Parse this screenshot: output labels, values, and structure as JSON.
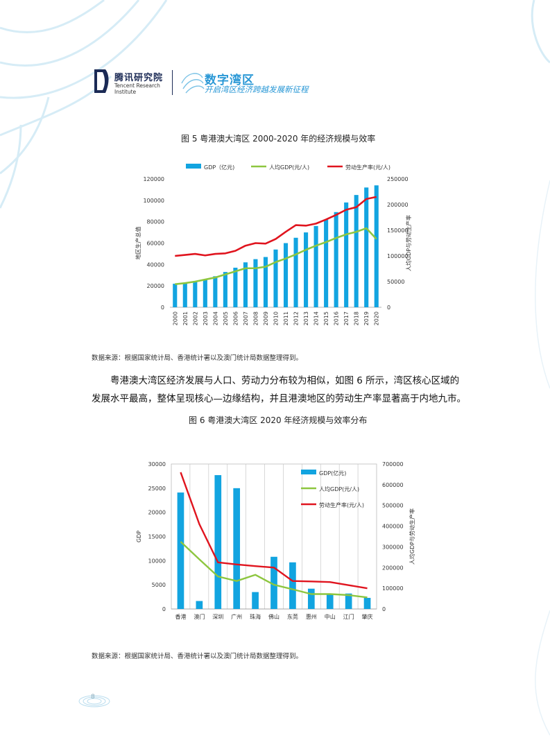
{
  "header": {
    "brand_cn": "腾讯研究院",
    "brand_en": "Tencent Research Institute",
    "topic_title": "数字湾区",
    "topic_subtitle": "开启湾区经济跨越发展新征程"
  },
  "figure5": {
    "title": "图 5  粤港澳大湾区 2000-2020 年的经济规模与效率"
  },
  "source1": "数据来源：根据国家统计局、香港统计署以及澳门统计局数据整理得到。",
  "paragraph": "粤港澳大湾区经济发展与人口、劳动力分布较为相似，如图 6 所示，湾区核心区域的发展水平最高，整体呈现核心—边缘结构，并且港澳地区的劳动生产率显著高于内地九市。",
  "figure6": {
    "title": "图 6  粤港澳大湾区 2020 年经济规模与效率分布"
  },
  "source2": "数据来源：根据国家统计局、香港统计署以及澳门统计局数据整理得到。",
  "page_number": "8",
  "colors": {
    "bar": "#12a4e0",
    "green": "#8dc63f",
    "red": "#e0141e",
    "brand": "#2a98d6"
  },
  "chart_data": [
    {
      "type": "bar",
      "categories": [
        "2000",
        "2001",
        "2002",
        "2003",
        "2004",
        "2005",
        "2006",
        "2007",
        "2008",
        "2009",
        "2010",
        "2011",
        "2012",
        "2013",
        "2014",
        "2015",
        "2016",
        "2017",
        "2018",
        "2019",
        "2020"
      ],
      "series": [
        {
          "name": "GDP（亿元)",
          "type": "bar",
          "axis": "left",
          "values": [
            22000,
            23000,
            24500,
            26000,
            29000,
            33000,
            37000,
            42000,
            45000,
            47000,
            54000,
            60000,
            65000,
            70000,
            76000,
            82000,
            89000,
            98000,
            105000,
            112000,
            114000
          ]
        },
        {
          "name": "人均GDP(元/人)",
          "type": "line",
          "axis": "right",
          "values": [
            45000,
            47000,
            50000,
            54000,
            58000,
            64000,
            70000,
            76000,
            76000,
            79000,
            88000,
            95000,
            103000,
            112000,
            120000,
            127000,
            135000,
            142000,
            147000,
            154000,
            133000
          ]
        },
        {
          "name": "劳动生产率(元/人)",
          "type": "line",
          "axis": "right",
          "values": [
            100000,
            102000,
            104000,
            101000,
            104000,
            105000,
            110000,
            120000,
            125000,
            124000,
            133000,
            147000,
            160000,
            159000,
            163000,
            171000,
            180000,
            190000,
            195000,
            211000,
            215000
          ]
        }
      ],
      "ylabel": "地区生产总值",
      "y2label": "人均GDP与劳动生产率",
      "ylim": [
        0,
        120000
      ],
      "yticks": [
        0,
        20000,
        40000,
        60000,
        80000,
        100000,
        120000
      ],
      "y2lim": [
        0,
        250000
      ],
      "y2ticks": [
        0,
        50000,
        100000,
        150000,
        200000,
        250000
      ],
      "legend": "top",
      "grid": false
    },
    {
      "type": "bar",
      "categories": [
        "香港",
        "澳门",
        "深圳",
        "广州",
        "珠海",
        "佛山",
        "东莞",
        "惠州",
        "中山",
        "江门",
        "肇庆"
      ],
      "series": [
        {
          "name": "GDP(亿元)",
          "type": "bar",
          "axis": "left",
          "values": [
            24100,
            1650,
            27700,
            25000,
            3500,
            10800,
            9650,
            4200,
            3150,
            3200,
            2300
          ]
        },
        {
          "name": "人均GDP(元/人)",
          "type": "line",
          "axis": "right",
          "values": [
            325000,
            240000,
            157000,
            135000,
            165000,
            117000,
            95000,
            72000,
            72000,
            67000,
            56000
          ]
        },
        {
          "name": "劳动生产率(元/人)",
          "type": "line",
          "axis": "right",
          "values": [
            660000,
            410000,
            225000,
            215000,
            207000,
            200000,
            135000,
            133000,
            130000,
            115000,
            100000
          ]
        }
      ],
      "ylabel": "GDP",
      "y2label": "人均GDP与劳动生产率",
      "ylim": [
        0,
        30000
      ],
      "yticks": [
        0,
        5000,
        10000,
        15000,
        20000,
        25000,
        30000
      ],
      "y2lim": [
        0,
        700000
      ],
      "y2ticks": [
        0,
        100000,
        200000,
        300000,
        400000,
        500000,
        600000,
        700000
      ],
      "legend": "top-right",
      "grid": true
    }
  ]
}
